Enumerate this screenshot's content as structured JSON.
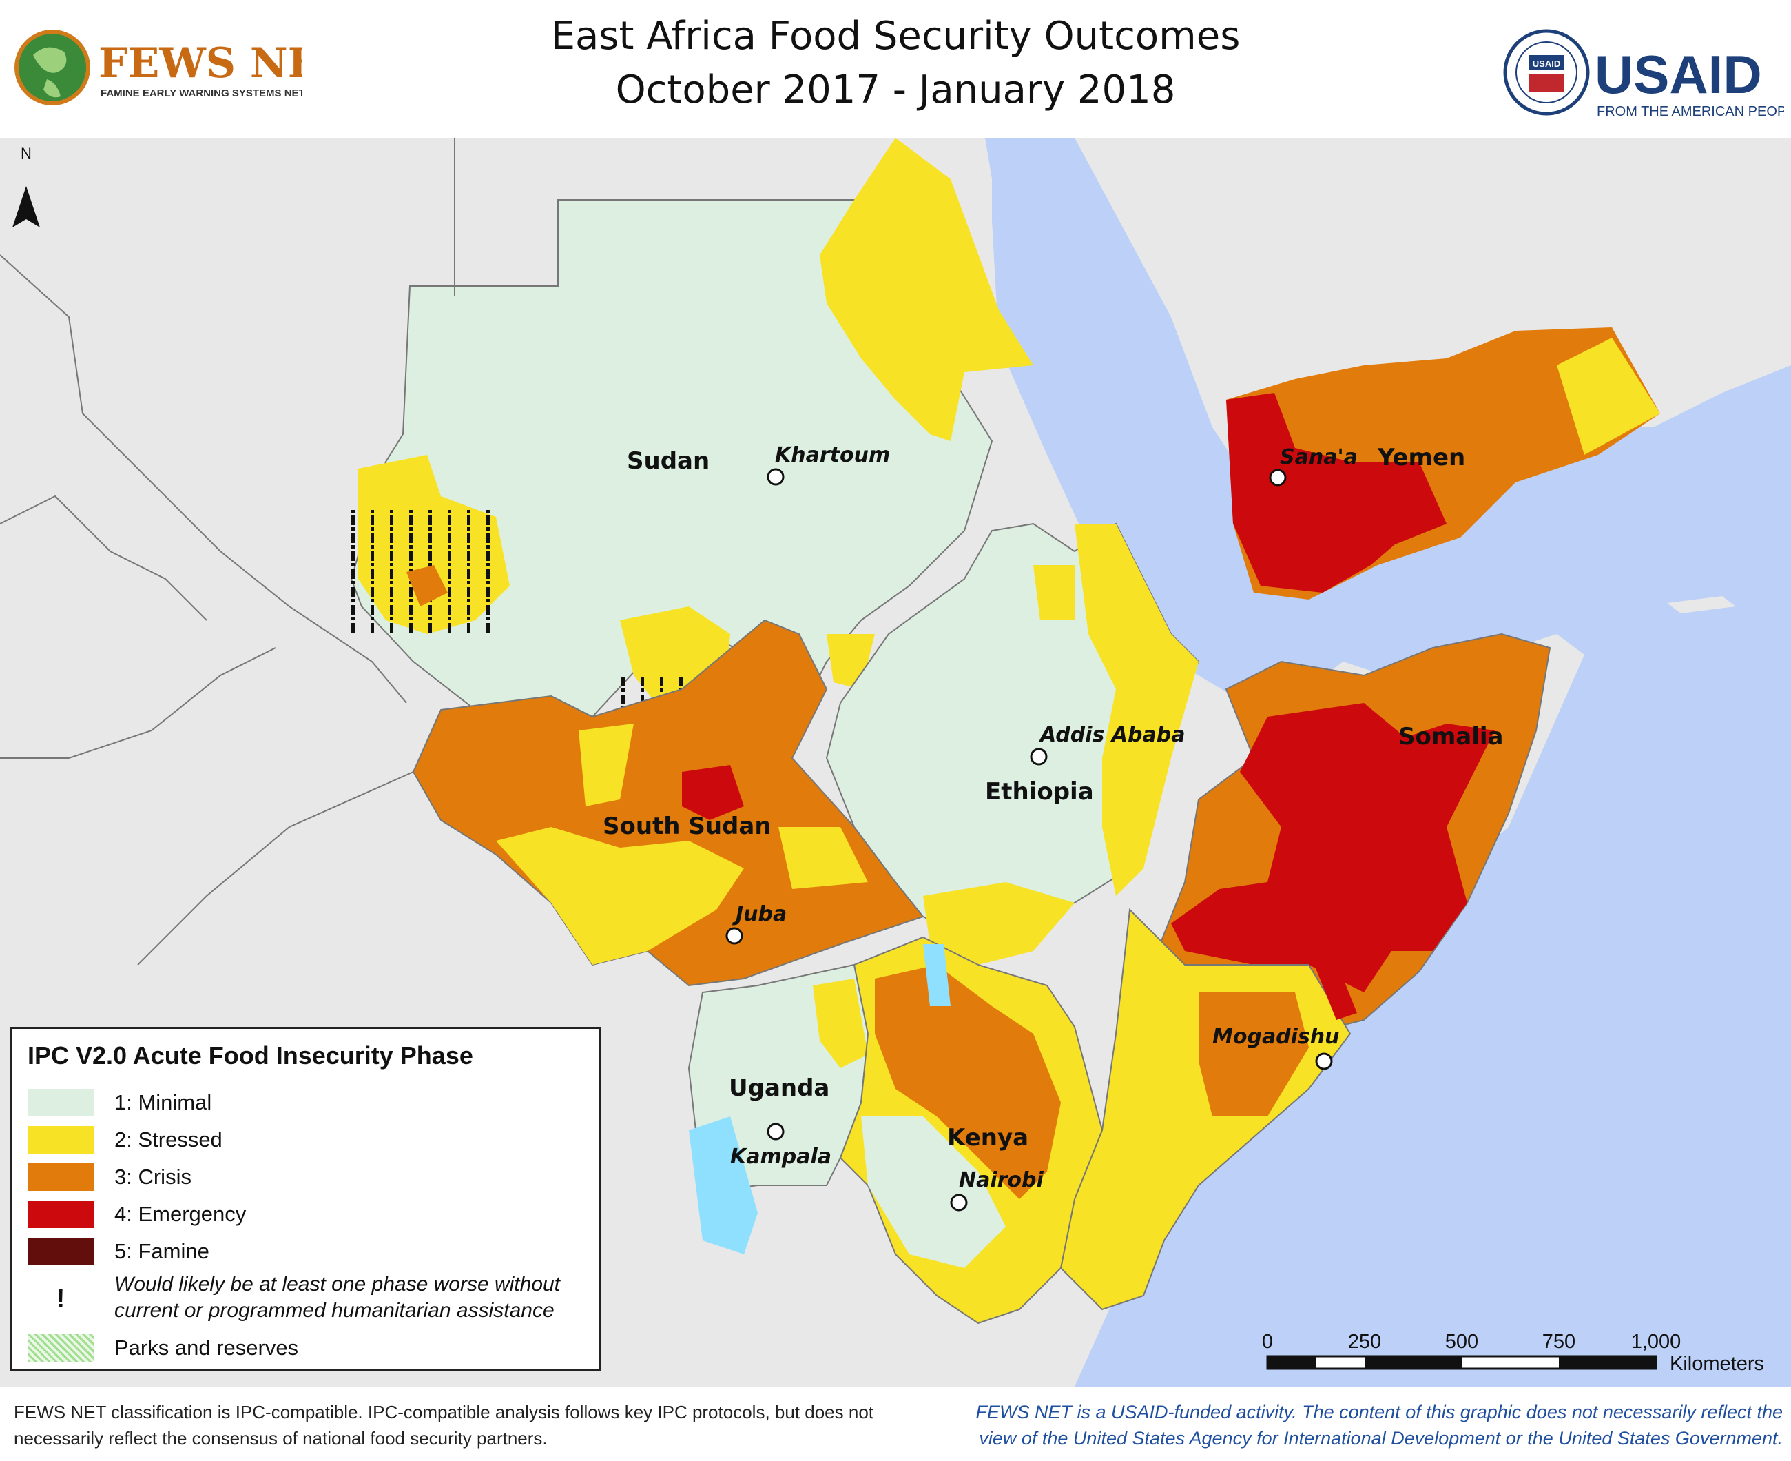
{
  "title": {
    "line1": "East Africa Food Security Outcomes",
    "line2": "October 2017 - January 2018"
  },
  "logo_left": {
    "name": "FEWS NET",
    "tagline": "FAMINE EARLY WARNING SYSTEMS NETWORK"
  },
  "logo_right": {
    "name": "USAID",
    "tagline": "FROM THE AMERICAN PEOPLE",
    "seal_text": "USAID"
  },
  "north_arrow": "N",
  "countries": {
    "sudan": "Sudan",
    "south_sudan": "South Sudan",
    "ethiopia": "Ethiopia",
    "yemen": "Yemen",
    "somalia": "Somalia",
    "uganda": "Uganda",
    "kenya": "Kenya"
  },
  "cities": {
    "khartoum": "Khartoum",
    "sanaa": "Sana'a",
    "addis": "Addis Ababa",
    "juba": "Juba",
    "mogadishu": "Mogadishu",
    "kampala": "Kampala",
    "nairobi": "Nairobi"
  },
  "legend": {
    "title": "IPC V2.0 Acute Food Insecurity Phase",
    "phases": [
      {
        "label": "1: Minimal",
        "color": "#dcefe0"
      },
      {
        "label": "2: Stressed",
        "color": "#f7e225"
      },
      {
        "label": "3: Crisis",
        "color": "#e07b0c"
      },
      {
        "label": "4: Emergency",
        "color": "#cc0a0e"
      },
      {
        "label": "5: Famine",
        "color": "#620e0d"
      }
    ],
    "assistance_symbol": "!",
    "assistance_note": "Would likely be at least one phase worse without current or programmed humanitarian assistance",
    "parks": "Parks and reserves"
  },
  "scale": {
    "ticks": [
      "0",
      "250",
      "500",
      "750",
      "1,000"
    ],
    "unit": "Kilometers"
  },
  "footer_left": "FEWS NET classification is IPC-compatible. IPC-compatible analysis follows key IPC protocols, but does not necessarily reflect the consensus of national food security partners.",
  "footer_right": "FEWS NET is a USAID-funded activity. The content of this graphic does not necessarily reflect the view of the United States Agency for International Development or the United States Government."
}
